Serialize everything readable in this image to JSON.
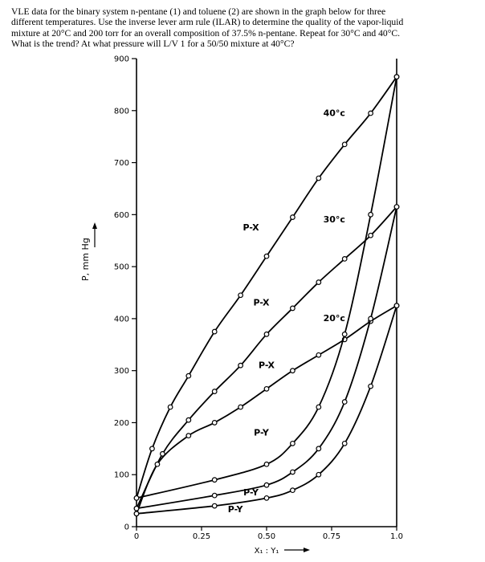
{
  "problem": {
    "lines": [
      "VLE data for the binary system n-pentane (1) and toluene (2) are shown in the graph below for three",
      "different temperatures.  Use the inverse lever arm rule (ILAR) to determine the quality of the vapor-liquid",
      "mixture at 20°C and 200 torr for an overall composition of 37.5% n-pentane.  Repeat for 30°C and 40°C.",
      "What is the trend?  At what pressure will L/V 1 for a 50/50 mixture at 40°C?"
    ]
  },
  "chart_data": {
    "type": "line",
    "xlabel": "X₁ : Y₁",
    "ylabel": "P, mm Hg",
    "xlim": [
      0,
      1
    ],
    "ylim": [
      0,
      900
    ],
    "x_ticks": [
      "0",
      "0.25",
      "0.50",
      "0.75",
      "1.0"
    ],
    "y_ticks": [
      "0",
      "100",
      "200",
      "300",
      "400",
      "500",
      "600",
      "700",
      "800",
      "900"
    ],
    "grid": false,
    "series": [
      {
        "name": "40°C",
        "curve": "P-X",
        "x": [
          0,
          0.06,
          0.13,
          0.2,
          0.3,
          0.4,
          0.5,
          0.6,
          0.7,
          0.8,
          0.9,
          1.0
        ],
        "y": [
          55,
          150,
          230,
          290,
          375,
          445,
          520,
          595,
          670,
          735,
          795,
          865
        ]
      },
      {
        "name": "30°C",
        "curve": "P-X",
        "x": [
          0,
          0.1,
          0.2,
          0.3,
          0.4,
          0.5,
          0.6,
          0.7,
          0.8,
          0.9,
          1.0
        ],
        "y": [
          35,
          140,
          205,
          260,
          310,
          370,
          420,
          470,
          515,
          560,
          615
        ]
      },
      {
        "name": "20°C",
        "curve": "P-X",
        "x": [
          0,
          0.08,
          0.2,
          0.3,
          0.4,
          0.5,
          0.6,
          0.7,
          0.8,
          0.9,
          1.0
        ],
        "y": [
          25,
          120,
          175,
          200,
          230,
          265,
          300,
          330,
          360,
          395,
          425
        ]
      },
      {
        "name": "40°C",
        "curve": "P-Y",
        "x": [
          0,
          0.3,
          0.5,
          0.6,
          0.7,
          0.8,
          0.9,
          1.0
        ],
        "y": [
          55,
          90,
          120,
          160,
          230,
          370,
          600,
          865
        ]
      },
      {
        "name": "30°C",
        "curve": "P-Y",
        "x": [
          0,
          0.3,
          0.5,
          0.6,
          0.7,
          0.8,
          0.9,
          1.0
        ],
        "y": [
          35,
          60,
          80,
          105,
          150,
          240,
          400,
          615
        ]
      },
      {
        "name": "20°C",
        "curve": "P-Y",
        "x": [
          0,
          0.3,
          0.5,
          0.6,
          0.7,
          0.8,
          0.9,
          1.0
        ],
        "y": [
          25,
          40,
          55,
          70,
          100,
          160,
          270,
          425
        ]
      }
    ],
    "annotations": [
      {
        "text": "P-X",
        "x": 0.44,
        "y": 570
      },
      {
        "text": "P-X",
        "x": 0.48,
        "y": 425
      },
      {
        "text": "P-X",
        "x": 0.5,
        "y": 305
      },
      {
        "text": "P-Y",
        "x": 0.48,
        "y": 175
      },
      {
        "text": "P-Y",
        "x": 0.44,
        "y": 60
      },
      {
        "text": "P-Y",
        "x": 0.38,
        "y": 28
      },
      {
        "text": "40°c",
        "x": 0.76,
        "y": 790
      },
      {
        "text": "30°c",
        "x": 0.76,
        "y": 585
      },
      {
        "text": "20°c",
        "x": 0.76,
        "y": 395
      }
    ]
  }
}
